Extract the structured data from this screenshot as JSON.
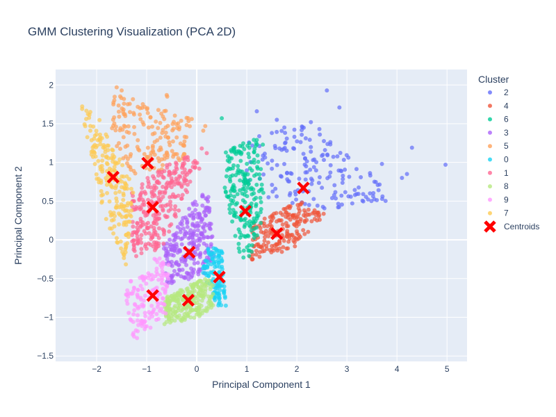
{
  "chart_data": {
    "type": "scatter",
    "title": "GMM Clustering Visualization (PCA 2D)",
    "xlabel": "Principal Component 1",
    "ylabel": "Principal Component 2",
    "xlim": [
      -2.82,
      5.4
    ],
    "ylim": [
      -1.57,
      2.2
    ],
    "x_ticks": [
      -2,
      -1,
      0,
      1,
      2,
      3,
      4,
      5
    ],
    "y_ticks": [
      -1.5,
      -1,
      -0.5,
      0,
      0.5,
      1,
      1.5,
      2
    ],
    "grid": true,
    "legend": {
      "title": "Cluster",
      "placement": "right"
    },
    "series": [
      {
        "name": "2",
        "color": "#636efa",
        "region": [
          [
            1.0,
            1.3
          ],
          [
            2.2,
            1.5
          ],
          [
            3.6,
            0.8
          ],
          [
            3.8,
            0.5
          ],
          [
            2.6,
            0.4
          ],
          [
            1.7,
            0.5
          ],
          [
            1.0,
            0.6
          ]
        ],
        "count": 170,
        "outliers": [
          [
            4.97,
            0.97
          ],
          [
            4.3,
            1.19
          ],
          [
            4.2,
            0.85
          ],
          [
            4.1,
            0.8
          ],
          [
            2.6,
            1.93
          ],
          [
            2.85,
            1.71
          ],
          [
            2.45,
            1.43
          ],
          [
            2.28,
            1.52
          ],
          [
            1.75,
            1.45
          ],
          [
            1.6,
            1.55
          ],
          [
            1.2,
            1.66
          ],
          [
            3.55,
            0.75
          ],
          [
            3.7,
            0.98
          ]
        ],
        "centroid": [
          2.13,
          0.67
        ]
      },
      {
        "name": "4",
        "color": "#ef553b",
        "region": [
          [
            1.1,
            0.2
          ],
          [
            2.05,
            0.5
          ],
          [
            2.6,
            0.35
          ],
          [
            1.95,
            -0.1
          ],
          [
            1.05,
            -0.3
          ]
        ],
        "count": 190,
        "outliers": [],
        "centroid": [
          1.6,
          0.08
        ]
      },
      {
        "name": "6",
        "color": "#00cc96",
        "region": [
          [
            0.55,
            1.12
          ],
          [
            1.2,
            1.35
          ],
          [
            1.35,
            0.55
          ],
          [
            1.35,
            0.3
          ],
          [
            1.0,
            -0.35
          ],
          [
            0.8,
            -0.1
          ],
          [
            0.55,
            0.7
          ]
        ],
        "count": 210,
        "outliers": [
          [
            0.5,
            1.57
          ],
          [
            1.2,
            1.29
          ],
          [
            1.32,
            1.23
          ]
        ],
        "centroid": [
          0.97,
          0.37
        ]
      },
      {
        "name": "3",
        "color": "#ab63fa",
        "region": [
          [
            -0.7,
            -0.1
          ],
          [
            0.05,
            0.6
          ],
          [
            0.25,
            0.55
          ],
          [
            0.35,
            -0.2
          ],
          [
            0.15,
            -0.45
          ],
          [
            -0.6,
            -0.6
          ]
        ],
        "count": 260,
        "outliers": [],
        "centroid": [
          -0.15,
          -0.16
        ]
      },
      {
        "name": "5",
        "color": "#ffa15a",
        "region": [
          [
            -1.7,
            1.9
          ],
          [
            -0.1,
            1.6
          ],
          [
            -0.05,
            1.05
          ],
          [
            -0.7,
            0.9
          ],
          [
            -1.3,
            0.85
          ],
          [
            -1.7,
            1.2
          ]
        ],
        "count": 170,
        "outliers": [
          [
            -1.6,
            1.97
          ],
          [
            -1.5,
            1.93
          ],
          [
            -0.6,
            1.87
          ],
          [
            -0.59,
            1.85
          ],
          [
            0.17,
            1.47
          ],
          [
            0.13,
            1.41
          ],
          [
            -0.1,
            1.56
          ]
        ],
        "centroid": [
          -0.98,
          0.99
        ]
      },
      {
        "name": "0",
        "color": "#19d3f3",
        "region": [
          [
            0.2,
            -0.1
          ],
          [
            0.5,
            -0.1
          ],
          [
            0.6,
            -0.85
          ],
          [
            0.4,
            -0.85
          ],
          [
            0.1,
            -0.4
          ]
        ],
        "count": 120,
        "outliers": [],
        "centroid": [
          0.45,
          -0.48
        ]
      },
      {
        "name": "1",
        "color": "#ff6692",
        "region": [
          [
            -1.3,
            0.65
          ],
          [
            -0.7,
            0.95
          ],
          [
            -0.1,
            1.1
          ],
          [
            0.1,
            0.95
          ],
          [
            -0.2,
            0.6
          ],
          [
            -0.7,
            -0.1
          ],
          [
            -1.3,
            -0.25
          ]
        ],
        "count": 280,
        "outliers": [
          [
            0.2,
            1.12
          ],
          [
            0.1,
            1.18
          ],
          [
            0.05,
            0.92
          ]
        ],
        "centroid": [
          -0.88,
          0.42
        ]
      },
      {
        "name": "8",
        "color": "#b6e880",
        "region": [
          [
            -0.65,
            -0.75
          ],
          [
            -0.05,
            -0.55
          ],
          [
            0.3,
            -0.45
          ],
          [
            0.35,
            -0.85
          ],
          [
            0.05,
            -1.0
          ],
          [
            -0.65,
            -1.1
          ]
        ],
        "count": 250,
        "outliers": [],
        "centroid": [
          -0.17,
          -0.78
        ]
      },
      {
        "name": "9",
        "color": "#ff97ff",
        "region": [
          [
            -1.3,
            -0.5
          ],
          [
            -0.8,
            -0.2
          ],
          [
            -0.55,
            -0.3
          ],
          [
            -0.6,
            -1.0
          ],
          [
            -1.25,
            -1.3
          ],
          [
            -1.45,
            -0.75
          ]
        ],
        "count": 150,
        "outliers": [],
        "centroid": [
          -0.88,
          -0.72
        ]
      },
      {
        "name": "7",
        "color": "#fecb52",
        "region": [
          [
            -2.35,
            1.75
          ],
          [
            -1.95,
            1.6
          ],
          [
            -1.25,
            0.65
          ],
          [
            -1.4,
            -0.35
          ],
          [
            -1.8,
            0.2
          ],
          [
            -2.2,
            1.3
          ]
        ],
        "count": 200,
        "outliers": [],
        "centroid": [
          -1.67,
          0.81
        ]
      },
      {
        "name": "Centroids",
        "color": "#ff0000",
        "marker": "x",
        "x": [
          2.13,
          1.6,
          0.97,
          -0.15,
          -0.98,
          0.45,
          -0.88,
          -0.17,
          -0.88,
          -1.67
        ],
        "y": [
          0.67,
          0.08,
          0.37,
          -0.16,
          0.99,
          -0.48,
          0.42,
          -0.78,
          -0.72,
          0.81
        ]
      }
    ]
  }
}
